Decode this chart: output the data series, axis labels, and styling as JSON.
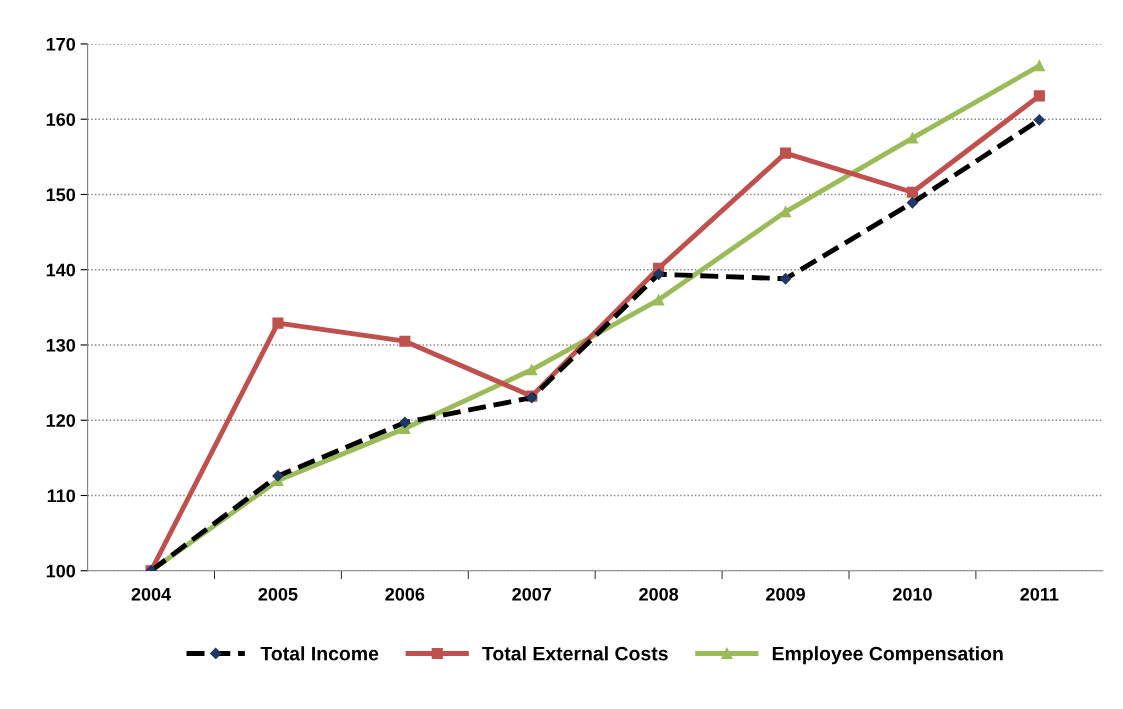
{
  "chart_data": {
    "type": "line",
    "categories": [
      "2004",
      "2005",
      "2006",
      "2007",
      "2008",
      "2009",
      "2010",
      "2011"
    ],
    "series": [
      {
        "name": "Total Income",
        "color": "#000000",
        "marker": "diamond",
        "line_style": "dashed",
        "values": [
          100,
          112.6,
          119.7,
          123,
          139.4,
          138.8,
          148.9,
          159.9
        ]
      },
      {
        "name": "Total External Costs",
        "color": "#c0504d",
        "marker": "square",
        "line_style": "solid",
        "values": [
          100,
          132.9,
          130.5,
          123.2,
          140.2,
          155.5,
          150.3,
          163.1
        ]
      },
      {
        "name": "Employee Compensation",
        "color": "#9bbb59",
        "marker": "triangle",
        "line_style": "solid",
        "values": [
          100,
          112,
          118.9,
          126.7,
          136,
          147.7,
          157.5,
          167.1
        ]
      }
    ],
    "ylim": [
      100,
      170
    ],
    "yticks": [
      100,
      110,
      120,
      130,
      140,
      150,
      160,
      170
    ],
    "grid": "y",
    "legend": "bottom"
  }
}
